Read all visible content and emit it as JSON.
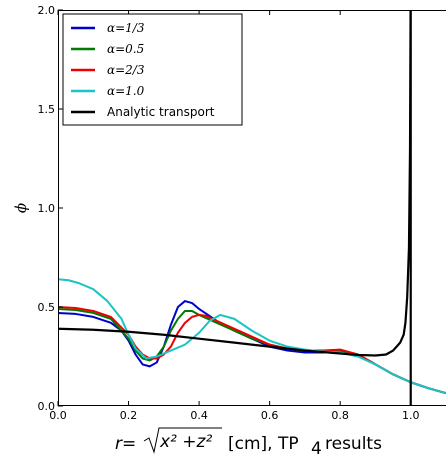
{
  "chart_data": {
    "type": "line",
    "xlabel": "r=√x² +z²  [cm], TP₄ results",
    "xlabel_parts": {
      "lhs": "r=",
      "radicand": "x² +z²",
      "rest": "[cm], TP",
      "sub": "4",
      "tail": "results"
    },
    "ylabel": "ϕ",
    "xlim": [
      0.0,
      1.1
    ],
    "ylim": [
      0.0,
      2.0
    ],
    "xticks": [
      "0.0",
      "0.2",
      "0.4",
      "0.6",
      "0.8",
      "1.0"
    ],
    "yticks": [
      "0.0",
      "0.5",
      "1.0",
      "1.5",
      "2.0"
    ],
    "grid": false,
    "legend_position": "top-left",
    "series": [
      {
        "name": "α=1/3",
        "color": "#0000cc",
        "x": [
          0.0,
          0.05,
          0.1,
          0.15,
          0.18,
          0.2,
          0.22,
          0.24,
          0.26,
          0.28,
          0.3,
          0.32,
          0.34,
          0.36,
          0.38,
          0.4,
          0.45,
          0.5,
          0.55,
          0.6,
          0.65,
          0.7,
          0.75,
          0.8,
          0.85,
          0.9,
          0.95,
          1.0,
          1.05,
          1.1
        ],
        "y": [
          0.47,
          0.465,
          0.45,
          0.42,
          0.38,
          0.33,
          0.26,
          0.21,
          0.2,
          0.22,
          0.3,
          0.41,
          0.5,
          0.53,
          0.52,
          0.49,
          0.43,
          0.38,
          0.34,
          0.3,
          0.28,
          0.27,
          0.27,
          0.28,
          0.26,
          0.21,
          0.16,
          0.12,
          0.09,
          0.065
        ]
      },
      {
        "name": "α=0.5",
        "color": "#007a00",
        "x": [
          0.0,
          0.05,
          0.1,
          0.15,
          0.2,
          0.22,
          0.24,
          0.26,
          0.28,
          0.3,
          0.32,
          0.34,
          0.36,
          0.38,
          0.4,
          0.45,
          0.5,
          0.55,
          0.6,
          0.65,
          0.7,
          0.75,
          0.8,
          0.85,
          0.9,
          0.95,
          1.0,
          1.05,
          1.1
        ],
        "y": [
          0.49,
          0.485,
          0.47,
          0.44,
          0.34,
          0.28,
          0.24,
          0.23,
          0.25,
          0.3,
          0.38,
          0.44,
          0.48,
          0.48,
          0.46,
          0.42,
          0.38,
          0.34,
          0.31,
          0.29,
          0.28,
          0.275,
          0.28,
          0.26,
          0.21,
          0.16,
          0.12,
          0.09,
          0.065
        ]
      },
      {
        "name": "α=2/3",
        "color": "#ee0000",
        "x": [
          0.0,
          0.05,
          0.1,
          0.15,
          0.2,
          0.22,
          0.24,
          0.26,
          0.28,
          0.3,
          0.32,
          0.34,
          0.36,
          0.38,
          0.4,
          0.42,
          0.45,
          0.5,
          0.55,
          0.6,
          0.65,
          0.7,
          0.75,
          0.8,
          0.85,
          0.9,
          0.95,
          1.0,
          1.05,
          1.1
        ],
        "y": [
          0.5,
          0.495,
          0.48,
          0.45,
          0.36,
          0.3,
          0.26,
          0.24,
          0.24,
          0.26,
          0.3,
          0.37,
          0.42,
          0.45,
          0.46,
          0.455,
          0.43,
          0.39,
          0.35,
          0.31,
          0.29,
          0.28,
          0.28,
          0.285,
          0.26,
          0.21,
          0.16,
          0.12,
          0.09,
          0.065
        ]
      },
      {
        "name": "α=1.0",
        "color": "#19c4c4",
        "x": [
          0.0,
          0.03,
          0.06,
          0.1,
          0.14,
          0.18,
          0.2,
          0.22,
          0.25,
          0.28,
          0.32,
          0.36,
          0.4,
          0.43,
          0.46,
          0.5,
          0.55,
          0.6,
          0.65,
          0.7,
          0.75,
          0.8,
          0.85,
          0.9,
          0.95,
          1.0,
          1.05,
          1.1
        ],
        "y": [
          0.64,
          0.635,
          0.62,
          0.59,
          0.53,
          0.44,
          0.36,
          0.29,
          0.24,
          0.25,
          0.28,
          0.31,
          0.37,
          0.43,
          0.46,
          0.44,
          0.38,
          0.33,
          0.3,
          0.285,
          0.275,
          0.27,
          0.25,
          0.21,
          0.16,
          0.12,
          0.09,
          0.065
        ]
      },
      {
        "name": "Analytic transport",
        "color": "#000000",
        "x": [
          0.0,
          0.1,
          0.2,
          0.3,
          0.4,
          0.5,
          0.6,
          0.7,
          0.8,
          0.85,
          0.9,
          0.93,
          0.95,
          0.97,
          0.98,
          0.985,
          0.99,
          0.995,
          0.998,
          0.9995,
          1.0,
          1.0
        ],
        "y": [
          0.39,
          0.385,
          0.375,
          0.36,
          0.34,
          0.32,
          0.3,
          0.28,
          0.265,
          0.258,
          0.255,
          0.26,
          0.28,
          0.32,
          0.36,
          0.42,
          0.55,
          0.8,
          1.3,
          2.0,
          2.0,
          0.0
        ]
      }
    ]
  }
}
